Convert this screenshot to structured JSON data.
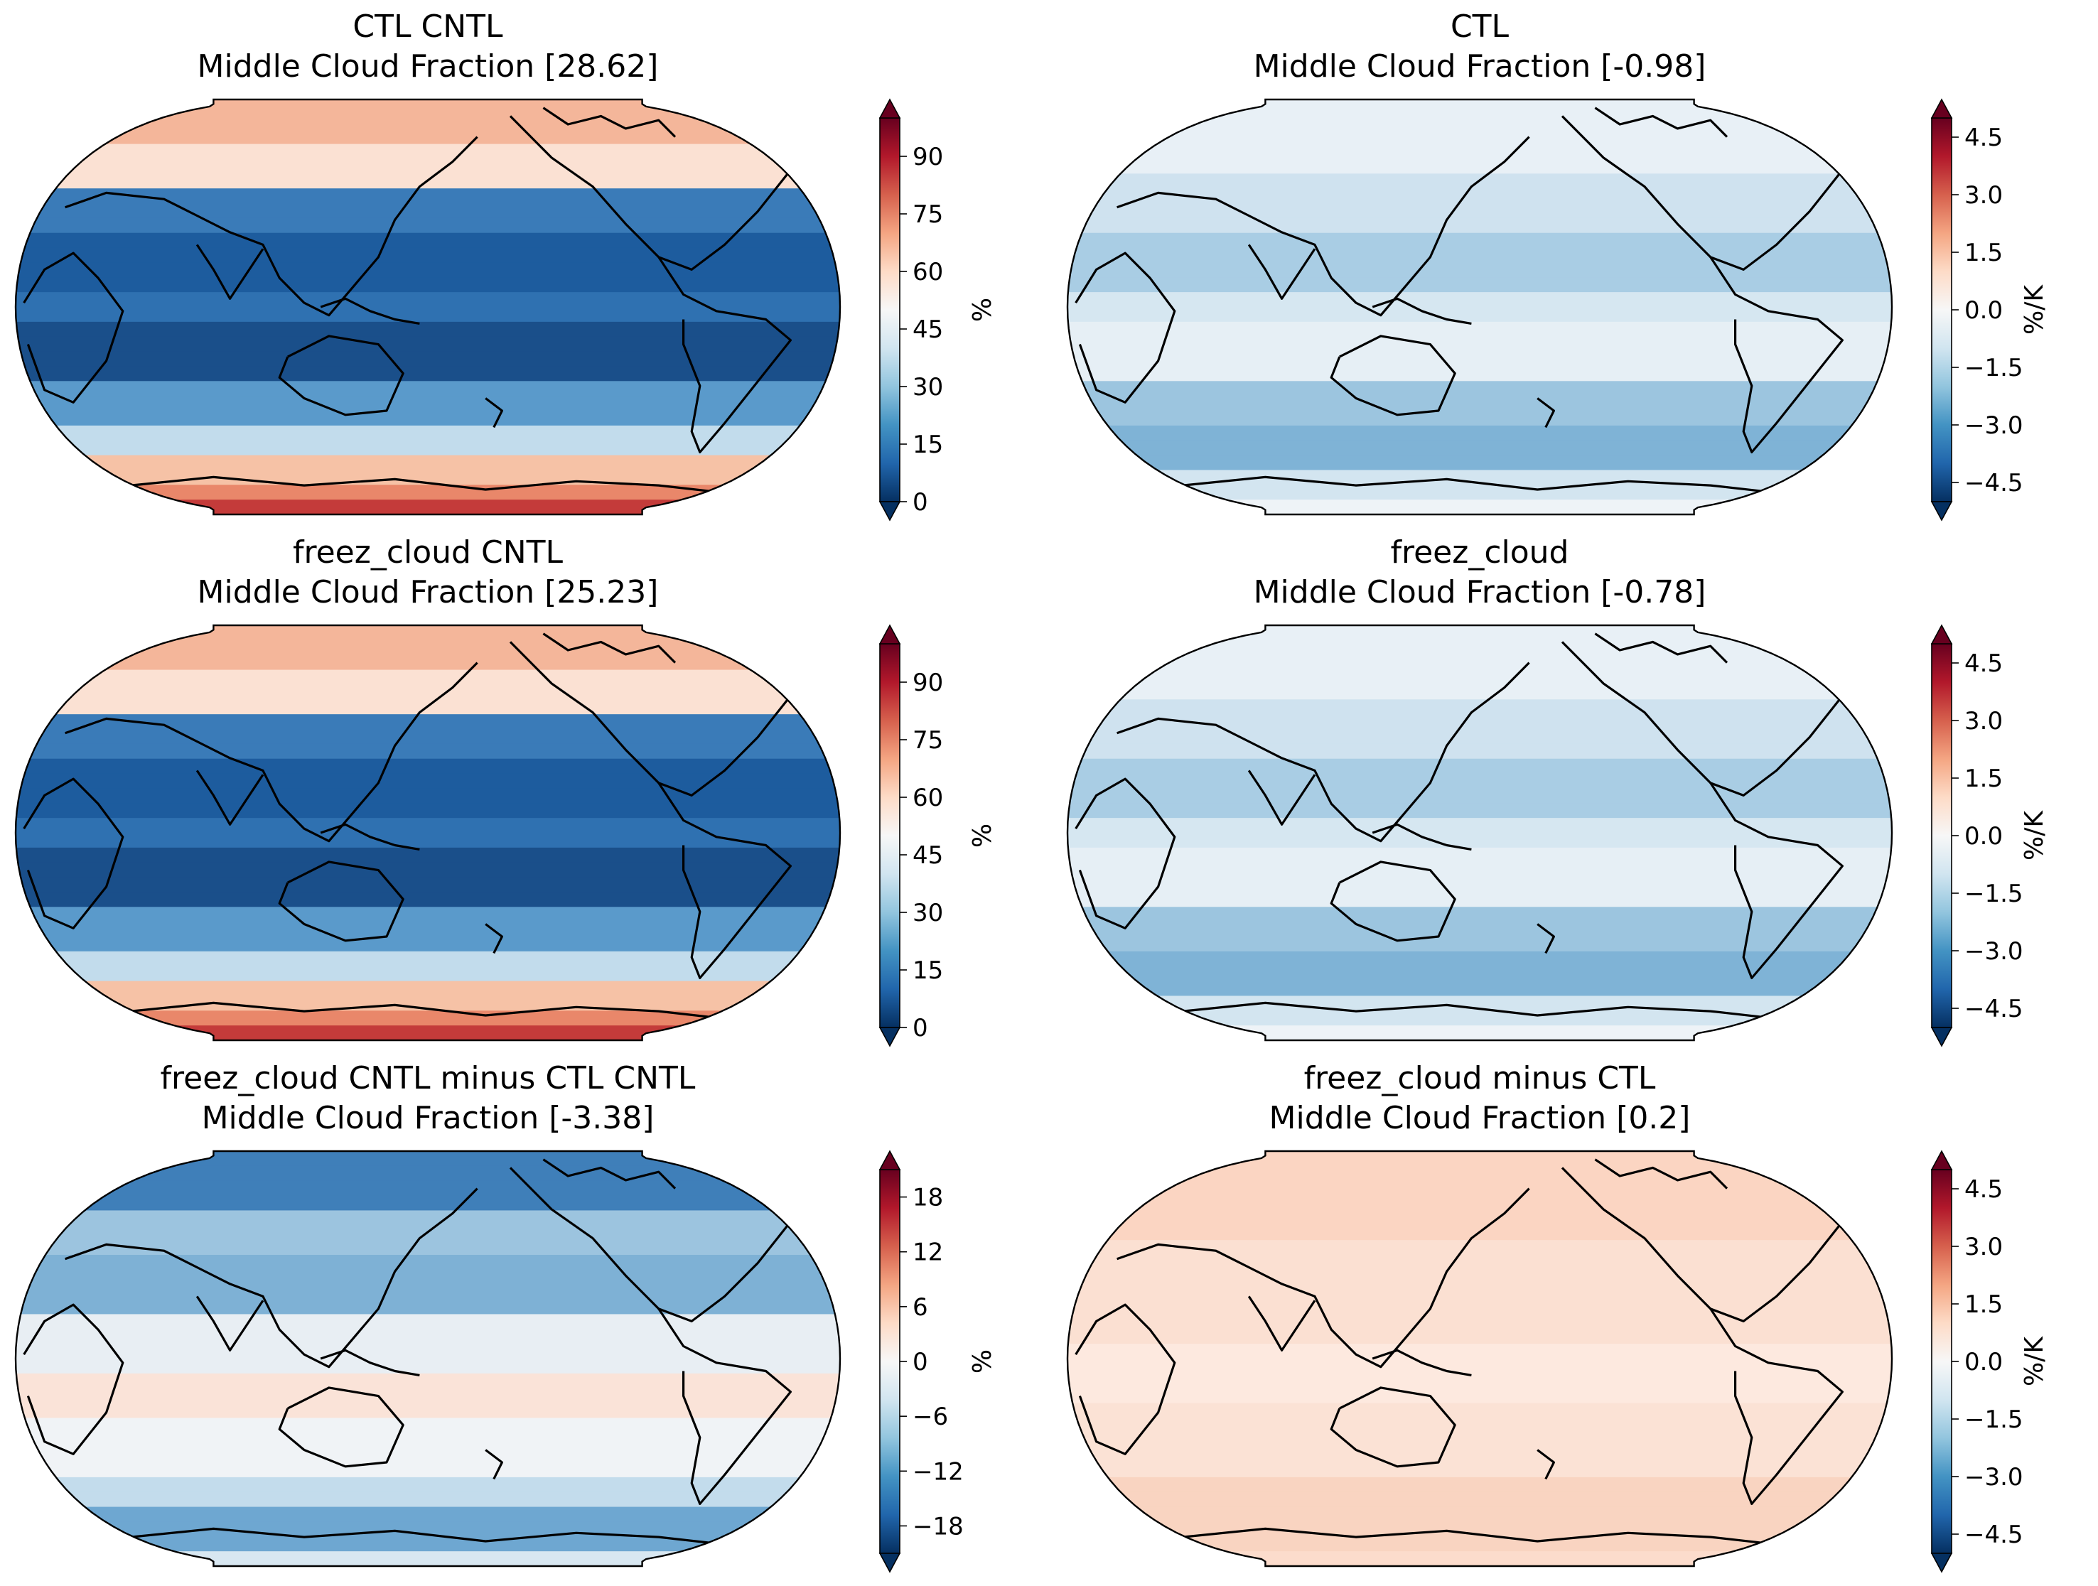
{
  "chart_data": [
    {
      "type": "map",
      "title_line1": "CTL CNTL",
      "title_line2": "Middle Cloud Fraction [28.62]",
      "colorbar": {
        "label": "%",
        "ticks": [
          "90",
          "75",
          "60",
          "45",
          "30",
          "15",
          "0"
        ],
        "range": [
          0,
          100
        ],
        "extend": "both",
        "colormap": "RdBu_r"
      },
      "field": "absolute"
    },
    {
      "type": "map",
      "title_line1": "CTL",
      "title_line2": "Middle Cloud Fraction [-0.98]",
      "colorbar": {
        "label": "%/K",
        "ticks": [
          "4.5",
          "3.0",
          "1.5",
          "0.0",
          "−1.5",
          "−3.0",
          "−4.5"
        ],
        "range": [
          -5,
          5
        ],
        "extend": "both",
        "colormap": "RdBu_r"
      },
      "field": "response"
    },
    {
      "type": "map",
      "title_line1": "freez_cloud CNTL",
      "title_line2": "Middle Cloud Fraction [25.23]",
      "colorbar": {
        "label": "%",
        "ticks": [
          "90",
          "75",
          "60",
          "45",
          "30",
          "15",
          "0"
        ],
        "range": [
          0,
          100
        ],
        "extend": "both",
        "colormap": "RdBu_r"
      },
      "field": "absolute"
    },
    {
      "type": "map",
      "title_line1": "freez_cloud",
      "title_line2": "Middle Cloud Fraction [-0.78]",
      "colorbar": {
        "label": "%/K",
        "ticks": [
          "4.5",
          "3.0",
          "1.5",
          "0.0",
          "−1.5",
          "−3.0",
          "−4.5"
        ],
        "range": [
          -5,
          5
        ],
        "extend": "both",
        "colormap": "RdBu_r"
      },
      "field": "response"
    },
    {
      "type": "map",
      "title_line1": "freez_cloud CNTL minus CTL CNTL",
      "title_line2": "Middle Cloud Fraction [-3.38]",
      "colorbar": {
        "label": "%",
        "ticks": [
          "18",
          "12",
          "6",
          "0",
          "−6",
          "−12",
          "−18"
        ],
        "range": [
          -21,
          21
        ],
        "extend": "both",
        "colormap": "RdBu_r"
      },
      "field": "difference"
    },
    {
      "type": "map",
      "title_line1": "freez_cloud minus CTL",
      "title_line2": "Middle Cloud Fraction [0.2]",
      "colorbar": {
        "label": "%/K",
        "ticks": [
          "4.5",
          "3.0",
          "1.5",
          "0.0",
          "−1.5",
          "−3.0",
          "−4.5"
        ],
        "range": [
          -5,
          5
        ],
        "extend": "both",
        "colormap": "RdBu_r"
      },
      "field": "response_difference"
    }
  ]
}
